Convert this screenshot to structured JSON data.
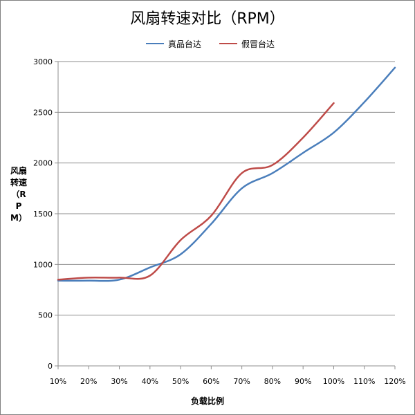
{
  "chart_data": {
    "type": "line",
    "title": "风扇转速对比（RPM）",
    "xlabel": "负载比例",
    "ylabel": "风扇转速（RPM）",
    "x": [
      "10%",
      "20%",
      "30%",
      "40%",
      "50%",
      "60%",
      "70%",
      "80%",
      "90%",
      "100%",
      "110%",
      "120%"
    ],
    "ylim": [
      0,
      3000
    ],
    "yticks": [
      0,
      500,
      1000,
      1500,
      2000,
      2500,
      3000
    ],
    "grid": true,
    "legend_position": "top",
    "series": [
      {
        "name": "真品台达",
        "color": "#4a7ebb",
        "values": [
          840,
          840,
          850,
          970,
          1100,
          1400,
          1750,
          1900,
          2100,
          2300,
          2600,
          2940
        ]
      },
      {
        "name": "假冒台达",
        "color": "#be4b48",
        "values": [
          850,
          870,
          870,
          890,
          1240,
          1480,
          1900,
          1980,
          2250,
          2590,
          null,
          null
        ]
      }
    ]
  }
}
